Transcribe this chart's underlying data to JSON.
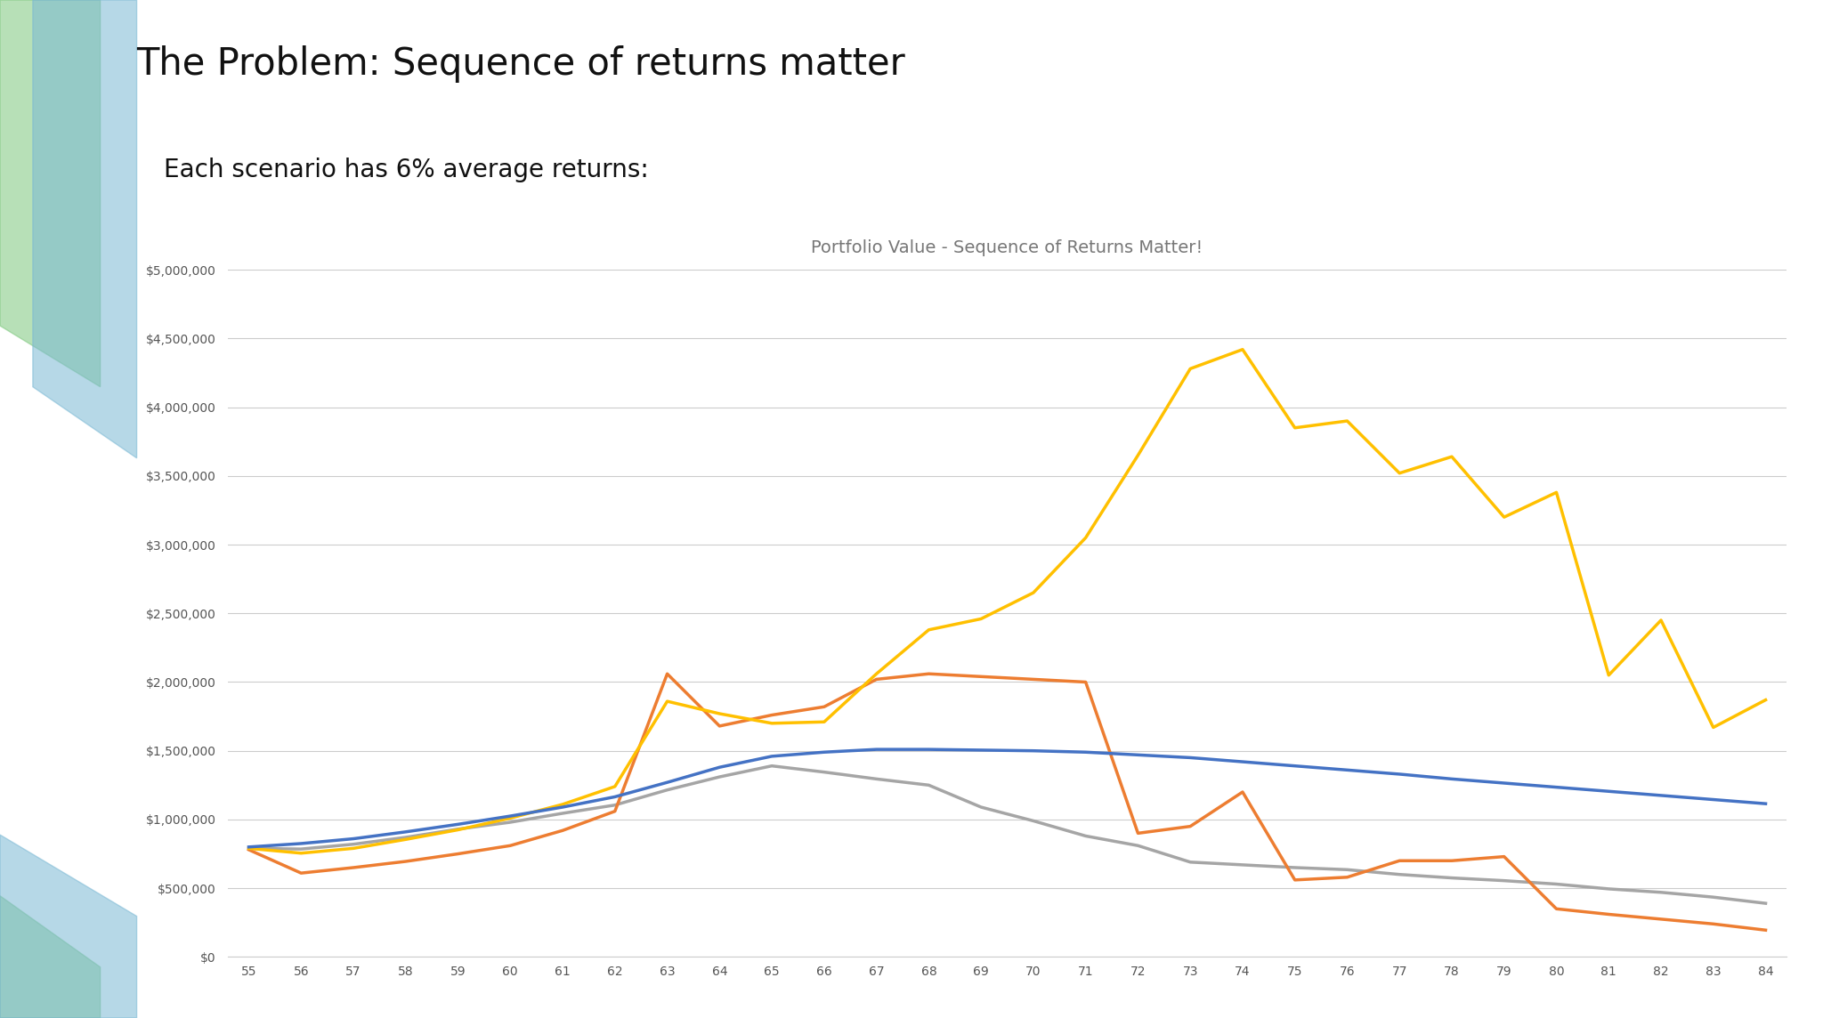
{
  "title": "The Problem: Sequence of returns matter",
  "subtitle": "Each scenario has 6% average returns:",
  "chart_title": "Portfolio Value - Sequence of Returns Matter!",
  "x_values": [
    55,
    56,
    57,
    58,
    59,
    60,
    61,
    62,
    63,
    64,
    65,
    66,
    67,
    68,
    69,
    70,
    71,
    72,
    73,
    74,
    75,
    76,
    77,
    78,
    79,
    80,
    81,
    82,
    83,
    84
  ],
  "blue_line": [
    800000,
    825000,
    860000,
    910000,
    965000,
    1025000,
    1090000,
    1165000,
    1270000,
    1380000,
    1460000,
    1490000,
    1510000,
    1510000,
    1505000,
    1500000,
    1490000,
    1470000,
    1450000,
    1420000,
    1390000,
    1360000,
    1330000,
    1295000,
    1265000,
    1235000,
    1205000,
    1175000,
    1145000,
    1115000
  ],
  "orange_line": [
    780000,
    610000,
    650000,
    695000,
    750000,
    810000,
    920000,
    1060000,
    2060000,
    1680000,
    1760000,
    1820000,
    2020000,
    2060000,
    2040000,
    2020000,
    2000000,
    900000,
    950000,
    1200000,
    560000,
    580000,
    700000,
    700000,
    730000,
    350000,
    310000,
    275000,
    240000,
    195000
  ],
  "yellow_line": [
    790000,
    755000,
    790000,
    855000,
    925000,
    1010000,
    1110000,
    1240000,
    1860000,
    1770000,
    1700000,
    1710000,
    2060000,
    2380000,
    2460000,
    2650000,
    3050000,
    3650000,
    4280000,
    4420000,
    3850000,
    3900000,
    3520000,
    3640000,
    3200000,
    3380000,
    2050000,
    2450000,
    1670000,
    1870000
  ],
  "gray_line": [
    790000,
    785000,
    820000,
    870000,
    930000,
    980000,
    1045000,
    1105000,
    1215000,
    1310000,
    1390000,
    1345000,
    1295000,
    1250000,
    1090000,
    990000,
    880000,
    810000,
    690000,
    670000,
    650000,
    635000,
    600000,
    575000,
    555000,
    530000,
    495000,
    470000,
    435000,
    390000
  ],
  "blue_color": "#4472C4",
  "orange_color": "#ED7D31",
  "yellow_color": "#FFC000",
  "gray_color": "#A5A5A5",
  "bg_color": "#FFFFFF",
  "title_fontsize": 30,
  "subtitle_fontsize": 20,
  "chart_title_fontsize": 14,
  "ylim": [
    0,
    5000000
  ],
  "yticks": [
    0,
    500000,
    1000000,
    1500000,
    2000000,
    2500000,
    3000000,
    3500000,
    4000000,
    4500000,
    5000000
  ],
  "line_width": 2.5,
  "stripe_green": "#7DC87D",
  "stripe_blue": "#7AB8D4",
  "stripe_ltblue": "#ADD8E6"
}
